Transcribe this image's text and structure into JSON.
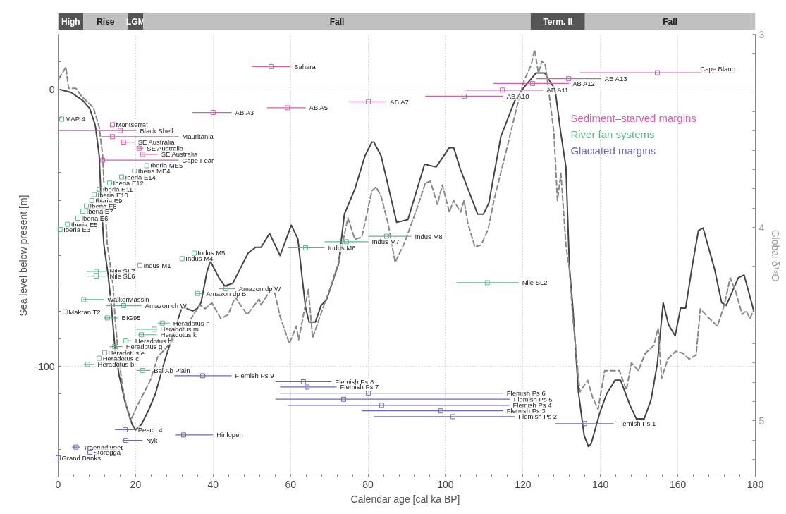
{
  "chart_data": [
    {
      "type": "bar",
      "orientation": "horizontal",
      "stacked": true,
      "categories": [
        null
      ],
      "xlim": [
        0,
        180
      ],
      "tick_labels": false,
      "series": [
        {
          "name": "High",
          "color": "#555555",
          "values": [
            6.5
          ]
        },
        {
          "name": "Rise",
          "color": "#c0c0c0",
          "values": [
            11.5
          ]
        },
        {
          "name": "LGM",
          "color": "#555555",
          "values": [
            4
          ]
        },
        {
          "name": "Fall",
          "color": "#c0c0c0",
          "values": [
            100
          ]
        },
        {
          "name": "Term. II",
          "color": "#555555",
          "values": [
            14
          ]
        },
        {
          "name": "Fall",
          "color": "#c0c0c0",
          "values": [
            44
          ]
        }
      ]
    },
    {
      "type": "line",
      "xlabel": "Calendar age [cal ka  BP]",
      "ylabel": "Sea level below present [m]",
      "y2label": "Global δ¹⁸O",
      "xlim": [
        0,
        180
      ],
      "xticks": [
        0,
        {
          "value": 4,
          "label": null
        },
        {
          "value": 8,
          "label": null
        },
        {
          "value": 12,
          "label": null
        },
        {
          "value": 16,
          "label": null
        },
        20,
        {
          "value": 24,
          "label": null
        },
        {
          "value": 28,
          "label": null
        },
        {
          "value": 32,
          "label": null
        },
        {
          "value": 36,
          "label": null
        },
        40,
        {
          "value": 44,
          "label": null
        },
        {
          "value": 48,
          "label": null
        },
        {
          "value": 52,
          "label": null
        },
        {
          "value": 56,
          "label": null
        },
        60,
        {
          "value": 64,
          "label": null
        },
        {
          "value": 68,
          "label": null
        },
        {
          "value": 72,
          "label": null
        },
        {
          "value": 76,
          "label": null
        },
        80,
        {
          "value": 84,
          "label": null
        },
        {
          "value": 88,
          "label": null
        },
        {
          "value": 92,
          "label": null
        },
        {
          "value": 96,
          "label": null
        },
        100,
        {
          "value": 104,
          "label": null
        },
        {
          "value": 108,
          "label": null
        },
        {
          "value": 112,
          "label": null
        },
        {
          "value": 116,
          "label": null
        },
        120,
        {
          "value": 124,
          "label": null
        },
        {
          "value": 128,
          "label": null
        },
        {
          "value": 132,
          "label": null
        },
        {
          "value": 136,
          "label": null
        },
        140,
        {
          "value": 144,
          "label": null
        },
        {
          "value": 148,
          "label": null
        },
        {
          "value": 152,
          "label": null
        },
        {
          "value": 156,
          "label": null
        },
        160,
        {
          "value": 164,
          "label": null
        },
        {
          "value": 168,
          "label": null
        },
        {
          "value": 172,
          "label": null
        },
        {
          "value": 176,
          "label": null
        },
        180
      ],
      "ylim": [
        -140,
        20
      ],
      "yticks": [
        {
          "value": -140,
          "label": null
        },
        {
          "value": -130,
          "label": null
        },
        {
          "value": -120,
          "label": null
        },
        {
          "value": -110,
          "label": null
        },
        -100,
        {
          "value": -90,
          "label": null
        },
        {
          "value": -80,
          "label": null
        },
        {
          "value": -70,
          "label": null
        },
        {
          "value": -60,
          "label": null
        },
        {
          "value": -50,
          "label": null
        },
        {
          "value": -40,
          "label": null
        },
        {
          "value": -30,
          "label": null
        },
        {
          "value": -20,
          "label": null
        },
        {
          "value": -10,
          "label": null
        },
        0,
        {
          "value": 10,
          "label": null
        }
      ],
      "y2lim": [
        5.29,
        3
      ],
      "y2ticks": [
        3,
        {
          "value": 3.1,
          "label": null
        },
        {
          "value": 3.2,
          "label": null
        },
        {
          "value": 3.3,
          "label": null
        },
        {
          "value": 3.4,
          "label": null
        },
        {
          "value": 3.5,
          "label": null
        },
        {
          "value": 3.6,
          "label": null
        },
        {
          "value": 3.7,
          "label": null
        },
        {
          "value": 3.8,
          "label": null
        },
        {
          "value": 3.9,
          "label": null
        },
        4,
        {
          "value": 4.1,
          "label": null
        },
        {
          "value": 4.2,
          "label": null
        },
        {
          "value": 4.3,
          "label": null
        },
        {
          "value": 4.4,
          "label": null
        },
        {
          "value": 4.5,
          "label": null
        },
        {
          "value": 4.6,
          "label": null
        },
        {
          "value": 4.7,
          "label": null
        },
        {
          "value": 4.8,
          "label": null
        },
        {
          "value": 4.9,
          "label": null
        },
        5,
        {
          "value": 5.1,
          "label": null
        },
        {
          "value": 5.2,
          "label": null
        }
      ],
      "grid": true,
      "legend": "top right",
      "series": [
        {
          "type": "line",
          "color": "#444444",
          "line_style": "solid",
          "marker": "none",
          "x": [
            0.5,
            3.3,
            6.4,
            8.2,
            9.6,
            10.6,
            11.1,
            11.8,
            12.9,
            13.8,
            14.7,
            15.7,
            17.3,
            19.1,
            20.0,
            21.5,
            23.3,
            25.1,
            27.5,
            30.0,
            31.9,
            32.9,
            34.8,
            36.0,
            36.9,
            38.4,
            39.3,
            41.5,
            43.0,
            45.1,
            46.9,
            49.1,
            51.0,
            52.4,
            54.6,
            57.3,
            60.2,
            61.9,
            63.0,
            63.9,
            64.8,
            66.4,
            67.9,
            69.3,
            72.4,
            73.9,
            76.6,
            79.2,
            81.0,
            81.5,
            83.4,
            87.4,
            90.3,
            94.6,
            97.6,
            101.0,
            102.1,
            103.9,
            108.3,
            109.8,
            111.2,
            114.3,
            117.9,
            119.8,
            121.6,
            123.4,
            125.6,
            128.3,
            129.8,
            131.1,
            132.0,
            132.9,
            134.3,
            135.8,
            136.9,
            137.6,
            139.8,
            141.6,
            143.8,
            145.2,
            147.6,
            149.3,
            151.3,
            153.1,
            154.7,
            156.2,
            157.6,
            159.3,
            160.7,
            162.0,
            163.8,
            165.3,
            166.5,
            169.5,
            171.3,
            172.5,
            175.6,
            177.1,
            179.6
          ],
          "values": [
            0,
            -1,
            -4,
            -7,
            -13,
            -24,
            -40,
            -56,
            -67,
            -79,
            -94,
            -103,
            -113,
            -121,
            -123,
            -121,
            -116,
            -110,
            -98,
            -87,
            -79,
            -79,
            -80,
            -79,
            -77,
            -66,
            -62,
            -68,
            -71,
            -70,
            -65,
            -59,
            -57,
            -57,
            -52,
            -60,
            -49,
            -54,
            -68,
            -79,
            -84,
            -84,
            -78,
            -76,
            -63,
            -45,
            -36,
            -24,
            -19,
            -19,
            -24,
            -48,
            -47,
            -27,
            -28,
            -21,
            -21,
            -29,
            -45,
            -45,
            -41,
            -17,
            -4,
            0,
            3,
            6,
            6,
            0,
            -16,
            -28,
            -64,
            -79,
            -109,
            -125,
            -129,
            -128,
            -117,
            -110,
            -105,
            -105,
            -114,
            -119,
            -119,
            -112,
            -99,
            -77,
            -85,
            -89,
            -79,
            -79,
            -63,
            -51,
            -50,
            -65,
            -77,
            -78,
            -68,
            -67,
            -80
          ]
        },
        {
          "type": "line",
          "axis": "y2",
          "color": "#888888",
          "line_style": "dashed",
          "marker": "none",
          "x": [
            0.2,
            2.0,
            2.7,
            4.6,
            6.0,
            9.1,
            10.6,
            11.5,
            12.0,
            12.7,
            14.2,
            14.7,
            15.5,
            16.6,
            17.8,
            18.7,
            20.2,
            21.5,
            23.8,
            25.7,
            27.5,
            29.3,
            31.1,
            33.7,
            36.6,
            37.9,
            39.7,
            42.0,
            43.9,
            45.7,
            48.8,
            51.9,
            52.4,
            55.5,
            57.3,
            59.7,
            61.5,
            62.1,
            64.6,
            65.7,
            68.3,
            70.1,
            72.4,
            74.8,
            76.6,
            78.4,
            81.0,
            82.1,
            83.4,
            85.2,
            87.0,
            89.4,
            92.5,
            94.8,
            96.1,
            97.9,
            99.2,
            101.0,
            102.1,
            103.9,
            104.8,
            105.8,
            107.6,
            109.2,
            111.0,
            112.5,
            116.1,
            118.5,
            120.3,
            122.1,
            123.0,
            124.0,
            124.9,
            125.8,
            126.7,
            128.0,
            128.9,
            129.8,
            131.1,
            132.0,
            132.9,
            134.7,
            136.7,
            138.0,
            139.4,
            141.1,
            143.1,
            144.9,
            146.7,
            148.0,
            149.8,
            151.6,
            153.8,
            154.9,
            155.8,
            157.4,
            159.4,
            161.3,
            162.9,
            164.7,
            165.8,
            167.6,
            170.2,
            172.0,
            173.5,
            174.9,
            176.6,
            177.6,
            178.6,
            179.5
          ],
          "values": [
            3.23,
            3.17,
            3.28,
            3.28,
            3.32,
            3.38,
            3.48,
            3.63,
            3.86,
            4.09,
            4.3,
            4.47,
            4.65,
            4.82,
            4.94,
            5.0,
            4.93,
            4.88,
            4.79,
            4.67,
            4.63,
            4.59,
            4.53,
            4.49,
            4.4,
            4.42,
            4.39,
            4.47,
            4.45,
            4.36,
            4.45,
            4.37,
            4.4,
            4.3,
            4.46,
            4.6,
            4.51,
            4.58,
            4.32,
            4.57,
            4.42,
            4.32,
            4.18,
            3.95,
            4.06,
            4.05,
            3.81,
            3.79,
            3.84,
            3.98,
            4.18,
            4.08,
            3.91,
            3.77,
            3.76,
            3.88,
            3.78,
            3.92,
            3.86,
            3.92,
            3.86,
            3.98,
            4.1,
            4.09,
            4.01,
            3.86,
            3.57,
            3.37,
            3.24,
            3.16,
            3.08,
            3.2,
            3.14,
            3.16,
            3.3,
            3.51,
            3.86,
            3.72,
            4.09,
            4.22,
            4.47,
            4.85,
            4.79,
            4.88,
            4.94,
            4.74,
            4.74,
            4.74,
            4.84,
            4.7,
            4.74,
            4.65,
            4.61,
            4.52,
            4.78,
            4.68,
            4.64,
            4.65,
            4.68,
            4.66,
            4.42,
            4.46,
            4.51,
            4.4,
            4.26,
            4.33,
            4.45,
            4.43,
            4.47,
            4.43
          ]
        },
        {
          "name": "Sediment–starved margins",
          "type": "scatter",
          "marker": "square",
          "color": "#d65db1",
          "x": [
            55,
            40,
            59.2,
            80.1,
            104.8,
            114.7,
            122.5,
            131.8,
            154.7,
            14,
            16,
            14,
            16.9,
            20.9,
            21.8,
            11.5
          ],
          "values": [
            8.3,
            -8.3,
            -6.6,
            -4.4,
            -2.4,
            -0.2,
            2.2,
            3.9,
            6.1,
            -12.7,
            -14.8,
            -17.0,
            -19.0,
            -21.2,
            -23.4,
            -25.5
          ],
          "xerrors": [
            [
              50,
              60
            ],
            [
              34.6,
              44.8
            ],
            [
              53.9,
              63.9
            ],
            [
              75,
              84.8
            ],
            [
              94.8,
              114.9
            ],
            [
              105.2,
              125.2
            ],
            [
              112.3,
              131.9
            ],
            [
              123.4,
              140.2
            ],
            [
              134.7,
              174.7
            ],
            null,
            [
              0.2,
              20.2
            ],
            [
              11.1,
              31.1
            ],
            [
              16,
              19.7
            ],
            [
              20.2,
              22
            ],
            [
              21.1,
              25.7
            ],
            [
              11.1,
              31.1
            ]
          ]
        },
        {
          "name": "River fan systems",
          "type": "scatter",
          "marker": "square",
          "color": "#5cb88a",
          "x": [
            0.9,
            22.9,
            19.7,
            16.4,
            13.3,
            10.6,
            9.3,
            8.7,
            7.3,
            6.4,
            5.1,
            2.4,
            0.5,
            35.1,
            32.0,
            21.1,
            63.9,
            74.4,
            84.8,
            9.8,
            9.8,
            110.8,
            6.6,
            16.9,
            36.0,
            43.3,
            1.8,
            12.7,
            26.9,
            24.8,
            21.5,
            17.5,
            14.6,
            12.0,
            10.6,
            7.6,
            21.8
          ],
          "values": [
            -10.7,
            -27.5,
            -29.4,
            -31.6,
            -33.8,
            -36.0,
            -38.0,
            -40.1,
            -42.1,
            -44.0,
            -46.5,
            -48.7,
            -50.6,
            -59.1,
            -61.1,
            -63.5,
            -57.2,
            -55.0,
            -53.0,
            -65.7,
            -67.4,
            -69.8,
            -75.9,
            -78.1,
            -73.7,
            -72.0,
            -80.3,
            -82.5,
            -84.4,
            -86.6,
            -88.6,
            -90.8,
            -92.9,
            -95.1,
            -97.1,
            -99.3,
            -101.5
          ],
          "xerrors": [
            null,
            null,
            null,
            null,
            null,
            null,
            null,
            null,
            null,
            null,
            null,
            null,
            null,
            null,
            null,
            null,
            [
              59.2,
              68.8
            ],
            [
              68.8,
              80.1
            ],
            [
              80.1,
              91.2
            ],
            [
              7.3,
              12.4
            ],
            [
              7.3,
              12.4
            ],
            [
              102.8,
              118.9
            ],
            [
              6.4,
              11.8
            ],
            [
              12.4,
              21.5
            ],
            [
              35.5,
              37.3
            ],
            [
              41.5,
              45.7
            ],
            null,
            [
              11.8,
              15.5
            ],
            [
              25.7,
              28.8
            ],
            [
              20.2,
              25.5
            ],
            [
              20.6,
              25.5
            ],
            [
              17,
              19
            ],
            [
              13.3,
              16.6
            ],
            null,
            null,
            [
              6.6,
              9.3
            ],
            [
              20.2,
              23.8
            ]
          ]
        },
        {
          "name": "Glaciated margins",
          "type": "scatter",
          "marker": "square",
          "color": "#6a6ab8",
          "x": [
            37.3,
            63.3,
            64.3,
            80.1,
            73.7,
            83.5,
            98.8,
            101.9,
            135.9,
            17.3,
            32.4,
            17.5,
            4.6,
            8.2,
            0
          ],
          "values": [
            -103.4,
            -105.6,
            -107.5,
            -109.7,
            -111.9,
            -114.1,
            -116.1,
            -118.2,
            -120.7,
            -122.9,
            -124.8,
            -126.8,
            -129.2,
            -131.1,
            -133.1
          ],
          "xerrors": [
            [
              30.0,
              44.8
            ],
            [
              56.1,
              70.6
            ],
            [
              57.3,
              71.9
            ],
            [
              57.3,
              114.9
            ],
            [
              56.1,
              116.7
            ],
            [
              59.2,
              116.5
            ],
            [
              78.4,
              114.9
            ],
            [
              81.5,
              117.9
            ],
            [
              128.3,
              143.4
            ],
            [
              14.7,
              19.7
            ],
            [
              30.2,
              40.0
            ],
            [
              16.6,
              21.8
            ],
            [
              3.6,
              5.6
            ],
            null,
            null
          ]
        }
      ],
      "annotations": [
        {
          "text": "Sahara",
          "x": 60,
          "y": 8.3
        },
        {
          "text": "AB A3",
          "x": 44.8,
          "y": -8.3
        },
        {
          "text": "AB A5",
          "x": 63.9,
          "y": -6.6
        },
        {
          "text": "AB A7",
          "x": 84.8,
          "y": -4.4
        },
        {
          "text": "AB A10",
          "x": 114.9,
          "y": -2.4
        },
        {
          "text": "AB A11",
          "x": 125.2,
          "y": -0.2
        },
        {
          "text": "AB A12",
          "x": 131.9,
          "y": 2.2
        },
        {
          "text": "AB A13",
          "x": 140.2,
          "y": 3.9
        },
        {
          "text": "Cape Blanc",
          "x": 174.7,
          "y": 6.1
        },
        {
          "text": "Montserrat",
          "x": 14,
          "y": -12.7
        },
        {
          "text": "Black Shell",
          "x": 20.2,
          "y": -14.8
        },
        {
          "text": "Mauritania",
          "x": 31.1,
          "y": -17.0
        },
        {
          "text": "SE Australia",
          "x": 19.7,
          "y": -19.0
        },
        {
          "text": "SE Australia",
          "x": 22,
          "y": -21.2
        },
        {
          "text": "SE Australia",
          "x": 25.7,
          "y": -23.4
        },
        {
          "text": "Cape Fear",
          "x": 31.1,
          "y": -25.5
        },
        {
          "text": "MAP 4",
          "x": 0.9,
          "y": -10.7
        },
        {
          "text": "Iberia ME5",
          "x": 22.9,
          "y": -27.5
        },
        {
          "text": "Iberia ME4",
          "x": 19.7,
          "y": -29.4
        },
        {
          "text": "Iberia E14",
          "x": 16.4,
          "y": -31.6
        },
        {
          "text": "Iberia E12",
          "x": 13.3,
          "y": -33.8
        },
        {
          "text": "Iberia E11",
          "x": 10.6,
          "y": -36.0
        },
        {
          "text": "Iberia E10",
          "x": 9.3,
          "y": -38.0
        },
        {
          "text": "Iberia E9",
          "x": 8.7,
          "y": -40.1
        },
        {
          "text": "Iberia E8",
          "x": 7.3,
          "y": -42.1
        },
        {
          "text": "Iberia E7",
          "x": 6.4,
          "y": -44.0
        },
        {
          "text": "Iberia E6",
          "x": 5.1,
          "y": -46.5
        },
        {
          "text": "Iberia E5",
          "x": 2.4,
          "y": -48.7
        },
        {
          "text": "Iberia E3",
          "x": 0.5,
          "y": -50.6
        },
        {
          "text": "Indus M5",
          "x": 35.1,
          "y": -59.1
        },
        {
          "text": "Indus M4",
          "x": 32.0,
          "y": -61.1
        },
        {
          "text": "Indus M1",
          "x": 21.1,
          "y": -63.5
        },
        {
          "text": "Indus M6",
          "x": 68.8,
          "y": -57.2
        },
        {
          "text": "Indus M7",
          "x": 80.1,
          "y": -55.0
        },
        {
          "text": "Indus M8",
          "x": 91.2,
          "y": -53.0
        },
        {
          "text": "Nile SL7",
          "x": 12.4,
          "y": -65.7
        },
        {
          "text": "Nile SL6",
          "x": 12.4,
          "y": -67.4
        },
        {
          "text": "Nile SL2",
          "x": 118.9,
          "y": -69.8
        },
        {
          "text": "WalkerMassin",
          "x": 11.8,
          "y": -75.9
        },
        {
          "text": "Amazon ch W",
          "x": 21.5,
          "y": -78.1
        },
        {
          "text": "Amazon dp B",
          "x": 37.3,
          "y": -73.7
        },
        {
          "text": "Amazon dp W",
          "x": 45.7,
          "y": -72.0
        },
        {
          "text": "Makran T2",
          "x": 1.8,
          "y": -80.3
        },
        {
          "text": "BIG95",
          "x": 15.5,
          "y": -82.5
        },
        {
          "text": "Heradotus n",
          "x": 28.8,
          "y": -84.4
        },
        {
          "text": "Heradotus m",
          "x": 25.5,
          "y": -86.6
        },
        {
          "text": "Heradotus k",
          "x": 25.5,
          "y": -88.6
        },
        {
          "text": "Heradotus h",
          "x": 19,
          "y": -90.8
        },
        {
          "text": "Heradotus g",
          "x": 16.6,
          "y": -92.9
        },
        {
          "text": "Heradotus e",
          "x": 12.0,
          "y": -95.1
        },
        {
          "text": "Heradotus c",
          "x": 10.6,
          "y": -97.1
        },
        {
          "text": "Heradotus b",
          "x": 9.3,
          "y": -99.3
        },
        {
          "text": "Bal Ab Plain",
          "x": 23.8,
          "y": -101.5
        },
        {
          "text": "Flemish Ps 9",
          "x": 44.8,
          "y": -103.4
        },
        {
          "text": "Flemish Ps 8",
          "x": 70.6,
          "y": -105.6
        },
        {
          "text": "Flemish Ps 7",
          "x": 71.9,
          "y": -107.5
        },
        {
          "text": "Flemish Ps 6",
          "x": 114.9,
          "y": -109.7
        },
        {
          "text": "Flemish Ps 5",
          "x": 116.7,
          "y": -111.9
        },
        {
          "text": "Flemish Ps 4",
          "x": 116.5,
          "y": -114.1
        },
        {
          "text": "Flemish Ps 3",
          "x": 114.9,
          "y": -116.1
        },
        {
          "text": "Flemish Ps 2",
          "x": 117.9,
          "y": -118.2
        },
        {
          "text": "Flemish Ps 1",
          "x": 143.4,
          "y": -120.7
        },
        {
          "text": "Peach 4",
          "x": 19.7,
          "y": -122.9
        },
        {
          "text": "Hinlopen",
          "x": 40.0,
          "y": -124.8
        },
        {
          "text": "Nyk",
          "x": 21.8,
          "y": -126.8
        },
        {
          "text": "Traenadjupet",
          "x": 5.6,
          "y": -129.2
        },
        {
          "text": "Storegga",
          "x": 8.2,
          "y": -131.1
        },
        {
          "text": "Grand Banks",
          "x": 0,
          "y": -133.1
        }
      ]
    }
  ]
}
